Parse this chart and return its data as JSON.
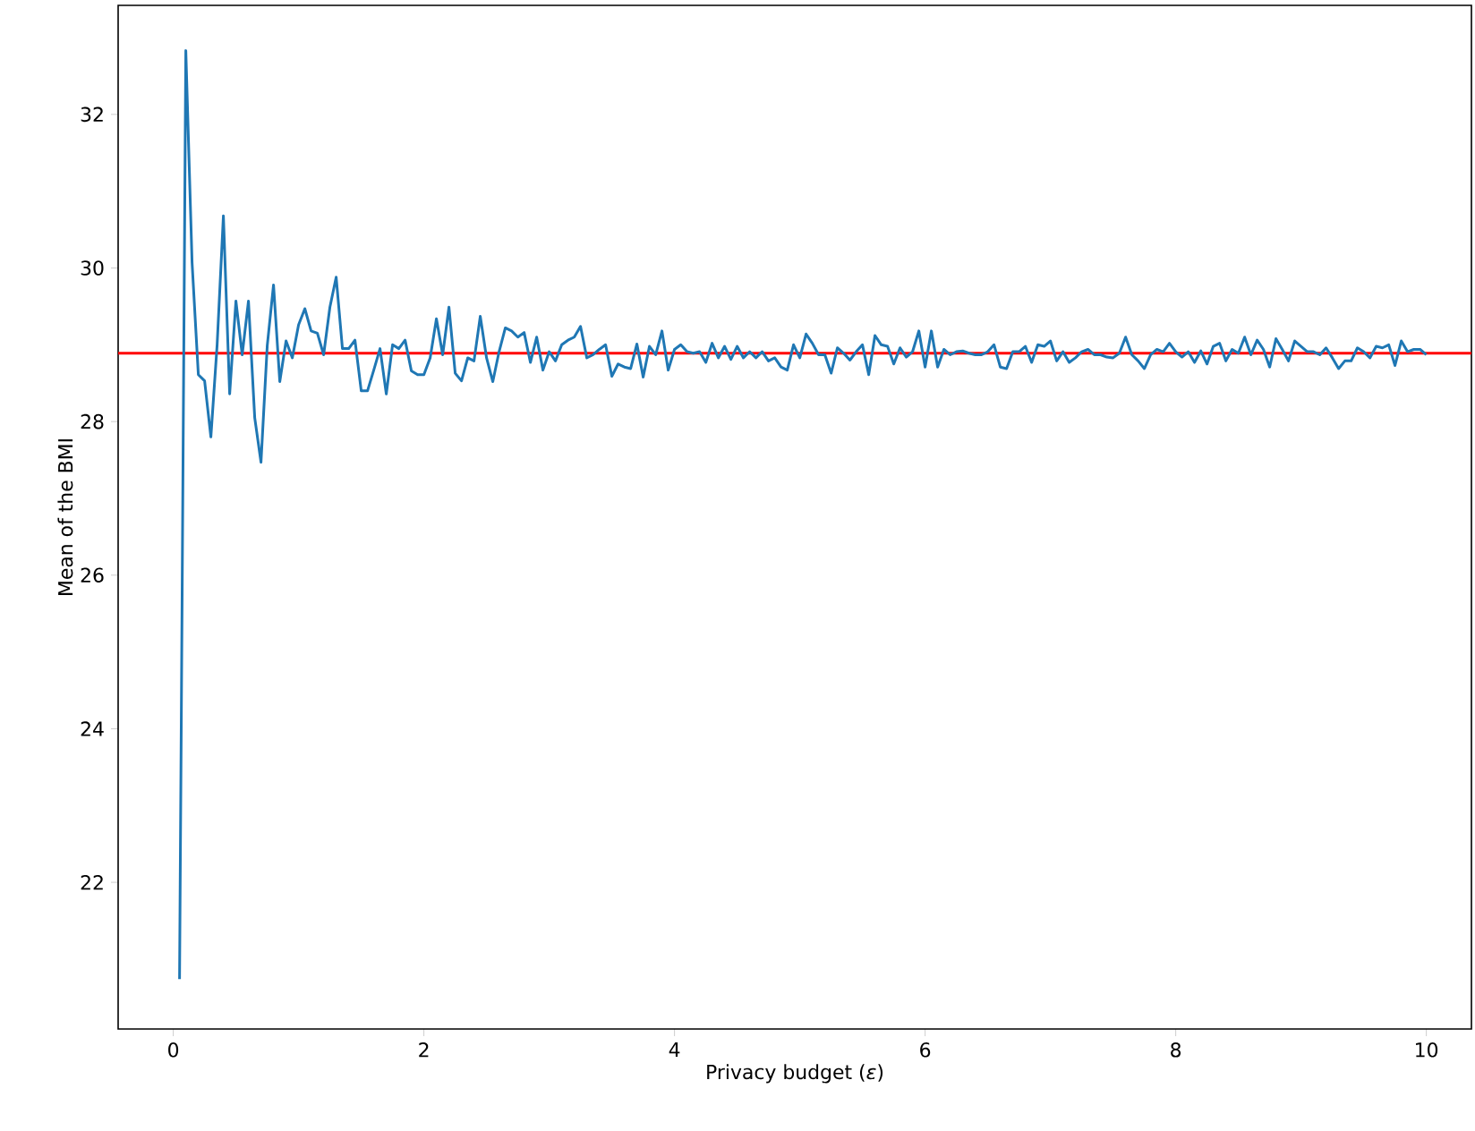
{
  "chart_data": {
    "type": "line",
    "xlabel": "Privacy budget (*ε*)",
    "ylabel": "Mean of the BMI",
    "xlim": [
      -0.44,
      10.36
    ],
    "ylim": [
      20.09,
      33.42
    ],
    "xticks": [
      0,
      2,
      4,
      6,
      8,
      10
    ],
    "yticks": [
      22,
      24,
      26,
      28,
      30,
      32
    ],
    "grid": false,
    "legend": false,
    "marker": "none",
    "line_style": "solid",
    "ref_lines": [
      {
        "axis": "y",
        "value": 28.89,
        "color": "#ff0000",
        "line_style": "solid"
      }
    ],
    "series": [
      {
        "color": "#1f77b4",
        "x": [
          0.05,
          0.1,
          0.15,
          0.2,
          0.25,
          0.3,
          0.35,
          0.4,
          0.45,
          0.5,
          0.55,
          0.6,
          0.65,
          0.7,
          0.75,
          0.8,
          0.85,
          0.9,
          0.95,
          1.0,
          1.05,
          1.1,
          1.15,
          1.2,
          1.25,
          1.3,
          1.35,
          1.4,
          1.45,
          1.5,
          1.55,
          1.6,
          1.65,
          1.7,
          1.75,
          1.8,
          1.85,
          1.9,
          1.95,
          2.0,
          2.05,
          2.1,
          2.15,
          2.2,
          2.25,
          2.3,
          2.35,
          2.4,
          2.45,
          2.5,
          2.55,
          2.6,
          2.65,
          2.7,
          2.75,
          2.8,
          2.85,
          2.9,
          2.95,
          3.0,
          3.05,
          3.1,
          3.15,
          3.2,
          3.25,
          3.3,
          3.35,
          3.4,
          3.45,
          3.5,
          3.55,
          3.6,
          3.65,
          3.7,
          3.75,
          3.8,
          3.85,
          3.9,
          3.95,
          4.0,
          4.05,
          4.1,
          4.15,
          4.2,
          4.25,
          4.3,
          4.35,
          4.4,
          4.45,
          4.5,
          4.55,
          4.6,
          4.65,
          4.7,
          4.75,
          4.8,
          4.85,
          4.9,
          4.95,
          5.0,
          5.05,
          5.1,
          5.15,
          5.2,
          5.25,
          5.3,
          5.35,
          5.4,
          5.45,
          5.5,
          5.55,
          5.6,
          5.65,
          5.7,
          5.75,
          5.8,
          5.85,
          5.9,
          5.95,
          6.0,
          6.05,
          6.1,
          6.15,
          6.2,
          6.25,
          6.3,
          6.35,
          6.4,
          6.45,
          6.5,
          6.55,
          6.6,
          6.65,
          6.7,
          6.75,
          6.8,
          6.85,
          6.9,
          6.95,
          7.0,
          7.05,
          7.1,
          7.15,
          7.2,
          7.25,
          7.3,
          7.35,
          7.4,
          7.45,
          7.5,
          7.55,
          7.6,
          7.65,
          7.7,
          7.75,
          7.8,
          7.85,
          7.9,
          7.95,
          8.0,
          8.05,
          8.1,
          8.15,
          8.2,
          8.25,
          8.3,
          8.35,
          8.4,
          8.45,
          8.5,
          8.55,
          8.6,
          8.65,
          8.7,
          8.75,
          8.8,
          8.85,
          8.9,
          8.95,
          9.0,
          9.05,
          9.1,
          9.15,
          9.2,
          9.25,
          9.3,
          9.35,
          9.4,
          9.45,
          9.5,
          9.55,
          9.6,
          9.65,
          9.7,
          9.75,
          9.8,
          9.85,
          9.9,
          9.95,
          10.0
        ],
        "values": [
          20.74,
          32.83,
          30.07,
          28.61,
          28.53,
          27.8,
          29.0,
          30.68,
          28.36,
          29.57,
          28.87,
          29.57,
          28.05,
          27.47,
          28.99,
          29.78,
          28.52,
          29.05,
          28.83,
          29.26,
          29.47,
          29.18,
          29.15,
          28.87,
          29.49,
          29.88,
          28.95,
          28.95,
          29.06,
          28.4,
          28.4,
          28.67,
          28.95,
          28.36,
          29.0,
          28.95,
          29.06,
          28.66,
          28.61,
          28.61,
          28.83,
          29.34,
          28.87,
          29.49,
          28.63,
          28.53,
          28.83,
          28.79,
          29.37,
          28.83,
          28.52,
          28.91,
          29.22,
          29.18,
          29.1,
          29.16,
          28.77,
          29.1,
          28.67,
          28.91,
          28.79,
          29.0,
          29.06,
          29.1,
          29.24,
          28.83,
          28.87,
          28.94,
          29.0,
          28.59,
          28.75,
          28.71,
          28.69,
          29.01,
          28.58,
          28.98,
          28.87,
          29.18,
          28.67,
          28.94,
          29.0,
          28.91,
          28.89,
          28.91,
          28.77,
          29.02,
          28.83,
          28.98,
          28.81,
          28.98,
          28.83,
          28.91,
          28.83,
          28.91,
          28.79,
          28.83,
          28.71,
          28.67,
          29.0,
          28.83,
          29.14,
          29.02,
          28.87,
          28.87,
          28.63,
          28.96,
          28.89,
          28.8,
          28.91,
          29.0,
          28.61,
          29.12,
          29.0,
          28.98,
          28.75,
          28.96,
          28.84,
          28.91,
          29.18,
          28.71,
          29.18,
          28.71,
          28.94,
          28.87,
          28.91,
          28.92,
          28.89,
          28.87,
          28.87,
          28.91,
          29.0,
          28.71,
          28.69,
          28.91,
          28.91,
          28.98,
          28.77,
          29.0,
          28.98,
          29.05,
          28.79,
          28.91,
          28.77,
          28.83,
          28.91,
          28.94,
          28.87,
          28.87,
          28.84,
          28.83,
          28.89,
          29.1,
          28.87,
          28.79,
          28.69,
          28.87,
          28.94,
          28.91,
          29.02,
          28.91,
          28.84,
          28.91,
          28.77,
          28.92,
          28.75,
          28.98,
          29.02,
          28.79,
          28.94,
          28.89,
          29.1,
          28.87,
          29.06,
          28.94,
          28.71,
          29.08,
          28.94,
          28.79,
          29.05,
          28.98,
          28.91,
          28.91,
          28.87,
          28.96,
          28.83,
          28.69,
          28.79,
          28.79,
          28.96,
          28.91,
          28.83,
          28.98,
          28.96,
          29.0,
          28.73,
          29.05,
          28.91,
          28.94,
          28.94,
          28.87
        ]
      }
    ]
  }
}
